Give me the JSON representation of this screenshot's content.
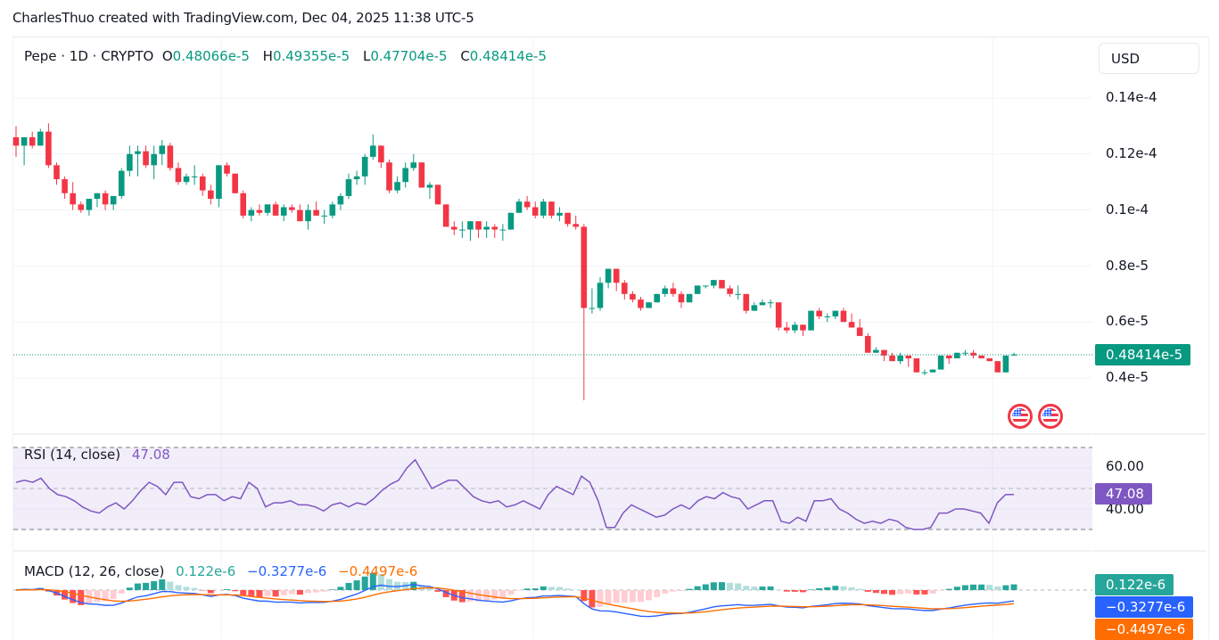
{
  "caption": "CharlesThuo created with TradingView.com, Dec 04, 2025 11:38 UTC-5",
  "header": {
    "symbol": "Pepe",
    "interval": "1D",
    "exchange": "CRYPTO",
    "title": "Pepe · 1D · CRYPTO",
    "open_label": "O",
    "open": "0.48066e-5",
    "high_label": "H",
    "high": "0.49355e-5",
    "low_label": "L",
    "low": "0.47704e-5",
    "close_label": "C",
    "close": "0.48414e-5"
  },
  "currency_button": "USD",
  "price_axis": {
    "labels": [
      "0.14e-4",
      "0.12e-4",
      "0.1e-4",
      "0.8e-5",
      "0.6e-5",
      "0.4e-5"
    ],
    "last_price": "0.48414e-5"
  },
  "rsi": {
    "title": "RSI (14, close)",
    "value": "47.08",
    "axis_labels": [
      "60.00",
      "40.00"
    ],
    "color": "#7e57c2"
  },
  "macd": {
    "title": "MACD (12, 26, close)",
    "histogram": "0.122e-6",
    "macd": "−0.3277e-6",
    "signal": "−0.4497e-6",
    "histogram_badge": "0.122e-6",
    "macd_badge": "−0.3277e-6",
    "signal_badge": "−0.4497e-6"
  },
  "colors": {
    "up": "#089981",
    "down": "#f23645",
    "rsi": "#7e57c2",
    "macd_line": "#2962ff",
    "signal_line": "#ff6d00",
    "hist_up_strong": "#26a69a",
    "hist_up_weak": "#b2dfdb",
    "hist_down_strong": "#ff5252",
    "hist_down_weak": "#ffcdd2"
  },
  "events": [
    "us-economic-event",
    "us-economic-event"
  ],
  "chart_data": {
    "type": "candlestick",
    "title": "Pepe · 1D · CRYPTO",
    "xlabel": "",
    "ylabel": "USD",
    "y_unit": "1e-6",
    "ylim": [
      3.0,
      15.0
    ],
    "y_ticks": [
      4,
      6,
      8,
      10,
      12,
      14
    ],
    "grid": true,
    "candles_ohlc_1e-6": [
      [
        12.6,
        13.0,
        11.9,
        12.3
      ],
      [
        12.3,
        12.6,
        11.6,
        12.6
      ],
      [
        12.6,
        12.8,
        12.2,
        12.3
      ],
      [
        12.3,
        12.9,
        12.3,
        12.8
      ],
      [
        12.8,
        13.1,
        11.5,
        11.6
      ],
      [
        11.6,
        11.7,
        10.9,
        11.1
      ],
      [
        11.1,
        11.2,
        10.4,
        10.6
      ],
      [
        10.6,
        11.0,
        10.0,
        10.2
      ],
      [
        10.2,
        10.3,
        9.9,
        10.0
      ],
      [
        10.0,
        10.4,
        9.8,
        10.4
      ],
      [
        10.4,
        10.6,
        10.1,
        10.6
      ],
      [
        10.6,
        10.7,
        10.0,
        10.2
      ],
      [
        10.2,
        10.5,
        10.0,
        10.5
      ],
      [
        10.5,
        11.5,
        10.4,
        11.4
      ],
      [
        11.4,
        12.3,
        11.2,
        12.0
      ],
      [
        12.0,
        12.3,
        11.2,
        12.1
      ],
      [
        12.1,
        12.3,
        11.5,
        11.6
      ],
      [
        11.6,
        12.3,
        11.1,
        12.0
      ],
      [
        12.0,
        12.5,
        11.6,
        12.3
      ],
      [
        12.3,
        12.4,
        11.4,
        11.5
      ],
      [
        11.5,
        11.7,
        10.9,
        11.0
      ],
      [
        11.0,
        11.3,
        10.9,
        11.2
      ],
      [
        11.2,
        11.6,
        10.9,
        11.2
      ],
      [
        11.2,
        11.3,
        10.5,
        10.7
      ],
      [
        10.7,
        10.9,
        10.2,
        10.4
      ],
      [
        10.4,
        11.6,
        10.1,
        11.6
      ],
      [
        11.6,
        11.7,
        11.2,
        11.3
      ],
      [
        11.3,
        11.3,
        10.6,
        10.6
      ],
      [
        10.6,
        10.7,
        9.7,
        9.8
      ],
      [
        9.8,
        10.1,
        9.6,
        10.0
      ],
      [
        10.0,
        10.2,
        9.8,
        9.9
      ],
      [
        9.9,
        10.2,
        9.8,
        10.2
      ],
      [
        10.2,
        10.3,
        9.8,
        9.8
      ],
      [
        9.8,
        10.2,
        9.6,
        10.1
      ],
      [
        10.1,
        10.2,
        9.9,
        10.0
      ],
      [
        10.0,
        10.2,
        9.6,
        9.6
      ],
      [
        9.6,
        10.2,
        9.3,
        10.0
      ],
      [
        10.0,
        10.3,
        9.8,
        9.8
      ],
      [
        9.8,
        10.0,
        9.5,
        9.8
      ],
      [
        9.8,
        10.3,
        9.7,
        10.2
      ],
      [
        10.2,
        10.6,
        10.0,
        10.5
      ],
      [
        10.5,
        11.3,
        10.4,
        11.1
      ],
      [
        11.1,
        11.4,
        10.9,
        11.2
      ],
      [
        11.2,
        12.0,
        10.9,
        11.9
      ],
      [
        11.9,
        12.7,
        11.8,
        12.3
      ],
      [
        12.3,
        12.3,
        11.5,
        11.7
      ],
      [
        11.7,
        11.8,
        10.6,
        10.7
      ],
      [
        10.7,
        11.2,
        10.6,
        11.0
      ],
      [
        11.0,
        11.7,
        10.8,
        11.5
      ],
      [
        11.5,
        12.0,
        11.4,
        11.7
      ],
      [
        11.7,
        11.7,
        10.8,
        10.8
      ],
      [
        10.8,
        11.0,
        10.4,
        10.9
      ],
      [
        10.9,
        10.9,
        10.2,
        10.2
      ],
      [
        10.2,
        10.2,
        9.4,
        9.4
      ],
      [
        9.4,
        9.6,
        9.1,
        9.3
      ],
      [
        9.3,
        9.6,
        9.0,
        9.3
      ],
      [
        9.3,
        9.6,
        8.9,
        9.6
      ],
      [
        9.6,
        9.6,
        9.0,
        9.3
      ],
      [
        9.3,
        9.6,
        9.0,
        9.4
      ],
      [
        9.4,
        9.5,
        9.0,
        9.3
      ],
      [
        9.3,
        9.5,
        8.9,
        9.3
      ],
      [
        9.3,
        9.9,
        9.3,
        9.9
      ],
      [
        9.9,
        10.4,
        9.9,
        10.3
      ],
      [
        10.3,
        10.5,
        10.0,
        10.1
      ],
      [
        10.1,
        10.3,
        9.7,
        9.8
      ],
      [
        9.8,
        10.4,
        9.7,
        10.3
      ],
      [
        10.3,
        10.3,
        9.7,
        9.8
      ],
      [
        9.8,
        10.1,
        9.6,
        9.9
      ],
      [
        9.9,
        9.9,
        9.4,
        9.5
      ],
      [
        9.5,
        9.8,
        9.3,
        9.4
      ],
      [
        9.4,
        9.5,
        3.2,
        6.5
      ],
      [
        6.5,
        7.2,
        6.3,
        6.5
      ],
      [
        6.5,
        7.6,
        6.4,
        7.4
      ],
      [
        7.4,
        7.9,
        7.2,
        7.9
      ],
      [
        7.9,
        7.9,
        7.1,
        7.4
      ],
      [
        7.4,
        7.5,
        6.8,
        7.0
      ],
      [
        7.0,
        7.1,
        6.7,
        6.8
      ],
      [
        6.8,
        6.9,
        6.4,
        6.5
      ],
      [
        6.5,
        6.7,
        6.5,
        6.7
      ],
      [
        6.7,
        7.0,
        6.7,
        7.0
      ],
      [
        7.0,
        7.3,
        6.9,
        7.2
      ],
      [
        7.2,
        7.4,
        6.9,
        7.0
      ],
      [
        7.0,
        7.1,
        6.5,
        6.7
      ],
      [
        6.7,
        7.0,
        6.7,
        7.0
      ],
      [
        7.0,
        7.3,
        7.0,
        7.3
      ],
      [
        7.3,
        7.3,
        7.2,
        7.3
      ],
      [
        7.3,
        7.5,
        7.2,
        7.5
      ],
      [
        7.5,
        7.5,
        7.2,
        7.2
      ],
      [
        7.2,
        7.3,
        6.9,
        7.0
      ],
      [
        7.0,
        7.3,
        6.8,
        7.0
      ],
      [
        7.0,
        7.0,
        6.3,
        6.4
      ],
      [
        6.4,
        6.7,
        6.4,
        6.6
      ],
      [
        6.6,
        6.8,
        6.6,
        6.7
      ],
      [
        6.7,
        6.8,
        6.5,
        6.7
      ],
      [
        6.7,
        6.7,
        5.7,
        5.8
      ],
      [
        5.8,
        6.0,
        5.6,
        5.7
      ],
      [
        5.7,
        6.0,
        5.6,
        5.9
      ],
      [
        5.9,
        5.9,
        5.5,
        5.7
      ],
      [
        5.7,
        6.4,
        5.7,
        6.4
      ],
      [
        6.4,
        6.5,
        6.1,
        6.2
      ],
      [
        6.2,
        6.3,
        6.0,
        6.2
      ],
      [
        6.2,
        6.4,
        6.1,
        6.4
      ],
      [
        6.4,
        6.5,
        6.0,
        6.0
      ],
      [
        6.0,
        6.3,
        5.8,
        5.8
      ],
      [
        5.8,
        6.1,
        5.5,
        5.5
      ],
      [
        5.5,
        5.6,
        4.9,
        4.9
      ],
      [
        4.9,
        5.1,
        4.9,
        5.0
      ],
      [
        5.0,
        5.0,
        4.6,
        4.8
      ],
      [
        4.8,
        4.9,
        4.6,
        4.6
      ],
      [
        4.6,
        4.9,
        4.5,
        4.8
      ],
      [
        4.8,
        4.8,
        4.4,
        4.7
      ],
      [
        4.7,
        4.7,
        4.2,
        4.2
      ],
      [
        4.2,
        4.3,
        4.1,
        4.2
      ],
      [
        4.2,
        4.3,
        4.2,
        4.3
      ],
      [
        4.3,
        4.8,
        4.3,
        4.8
      ],
      [
        4.8,
        4.8,
        4.5,
        4.7
      ],
      [
        4.7,
        4.9,
        4.7,
        4.9
      ],
      [
        4.9,
        5.0,
        4.8,
        4.9
      ],
      [
        4.9,
        5.0,
        4.7,
        4.8
      ],
      [
        4.8,
        4.8,
        4.7,
        4.7
      ],
      [
        4.7,
        4.7,
        4.6,
        4.6
      ],
      [
        4.6,
        4.6,
        4.2,
        4.2
      ],
      [
        4.2,
        4.8,
        4.2,
        4.8
      ],
      [
        4.8,
        4.9,
        4.8,
        4.84
      ]
    ],
    "last_close": "0.48414e-5",
    "indicators": [
      {
        "name": "RSI (14, close)",
        "last": 47.08,
        "levels": [
          70,
          50,
          30
        ],
        "axis_ticks": [
          60,
          40
        ],
        "values": [
          53,
          54,
          53,
          55,
          50,
          47,
          46,
          44,
          41,
          39,
          38,
          41,
          43,
          40,
          44,
          49,
          53,
          51,
          47,
          53,
          53,
          46,
          45,
          47,
          47,
          44,
          46,
          45,
          53,
          50,
          41,
          43,
          43,
          44,
          42,
          42,
          41,
          39,
          42,
          43,
          41,
          43,
          42,
          45,
          49,
          52,
          54,
          60,
          64,
          57,
          50,
          52,
          54,
          54,
          50,
          46,
          44,
          43,
          44,
          41,
          42,
          44,
          42,
          40,
          47,
          51,
          49,
          47,
          56,
          53,
          44,
          31,
          31,
          38,
          42,
          40,
          38,
          36,
          37,
          40,
          42,
          40,
          44,
          46,
          45,
          48,
          46,
          45,
          40,
          42,
          44,
          44,
          34,
          33,
          36,
          34,
          44,
          44,
          45,
          40,
          38,
          35,
          33,
          34,
          33,
          35,
          34,
          31,
          30,
          30,
          31,
          38,
          38,
          40,
          40,
          39,
          38,
          33,
          43,
          47,
          47.08
        ]
      },
      {
        "name": "MACD (12, 26, close)",
        "histogram_last": "0.122e-6",
        "macd_last": "-0.3277e-6",
        "signal_last": "-0.4497e-6"
      }
    ]
  }
}
